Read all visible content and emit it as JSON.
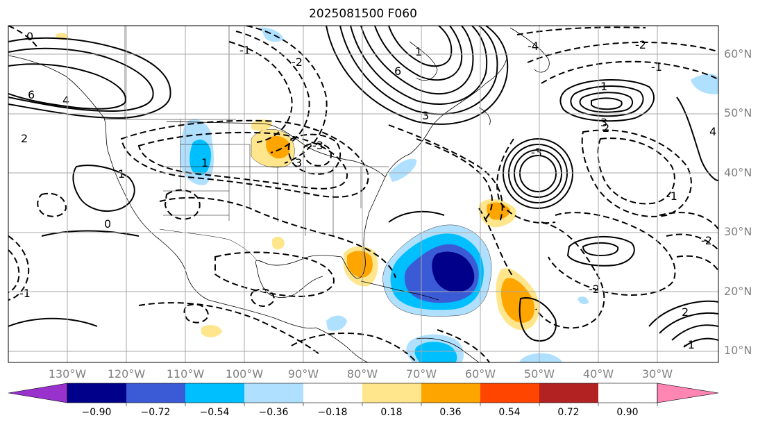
{
  "title": "2025081500 F060",
  "lat_labels": [
    "60°N",
    "50°N",
    "40°N",
    "30°N",
    "20°N",
    "10°N"
  ],
  "lon_labels": [
    "130°W",
    "120°W",
    "110°W",
    "100°W",
    "90°W",
    "80°W",
    "70°W",
    "60°W",
    "50°W",
    "40°W",
    "30°W"
  ],
  "colorbar": {
    "ticks": [
      "−0.90",
      "−0.72",
      "−0.54",
      "−0.36",
      "−0.18",
      "0.18",
      "0.36",
      "0.54",
      "0.72",
      "0.90"
    ],
    "colors": [
      "#9932cc",
      "#00008b",
      "#3b5bd6",
      "#00bfff",
      "#b0e0ff",
      "#ffffff",
      "#ffe68c",
      "#ffa500",
      "#ff4500",
      "#b22222",
      "#ff85b3"
    ]
  },
  "contour_labels": [
    "0",
    "6",
    "4",
    "2",
    "1",
    "-1",
    "-2",
    "3",
    "-3",
    "-4",
    "6",
    "3",
    "1",
    "-1",
    "-2",
    "4",
    "-1",
    "2",
    "3",
    "-3",
    "-2",
    "2",
    "-1",
    "0",
    "-2",
    "1",
    "-1",
    "1"
  ]
}
